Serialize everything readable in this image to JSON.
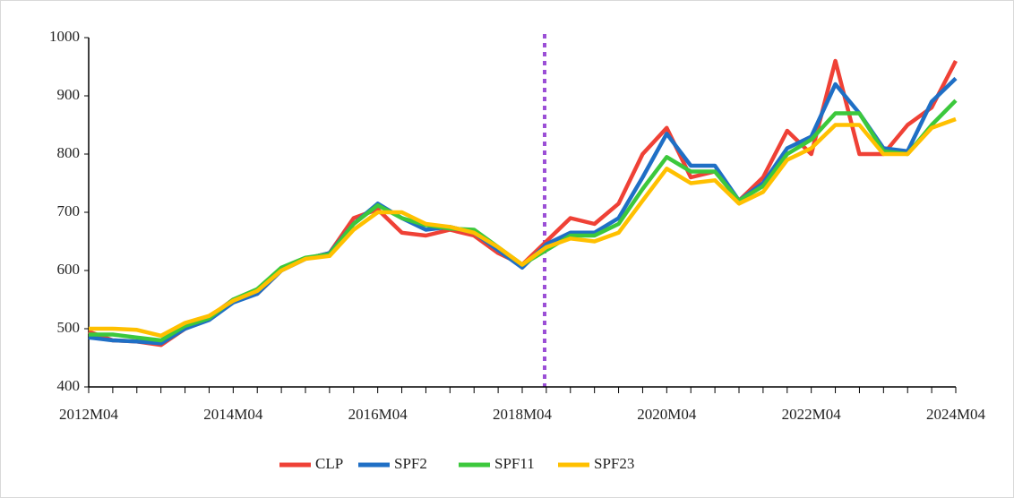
{
  "chart_data": {
    "type": "line",
    "categories": [
      "2012M04",
      null,
      null,
      null,
      null,
      null,
      "2014M04",
      null,
      null,
      null,
      null,
      null,
      "2016M04",
      null,
      null,
      null,
      null,
      null,
      "2018M04",
      null,
      null,
      null,
      null,
      null,
      "2020M04",
      null,
      null,
      null,
      null,
      null,
      "2022M04",
      null,
      null,
      null,
      null,
      null,
      "2024M04"
    ],
    "ylim": [
      400,
      1000
    ],
    "yticks": [
      400,
      500,
      600,
      700,
      800,
      900,
      1000
    ],
    "grid": false,
    "legend": "bottom",
    "series": [
      {
        "name": "CLP",
        "color": "#ef4136",
        "values": [
          495,
          480,
          478,
          472,
          500,
          520,
          550,
          560,
          600,
          620,
          630,
          690,
          705,
          665,
          660,
          670,
          660,
          630,
          610,
          650,
          690,
          680,
          715,
          800,
          845,
          760,
          770,
          720,
          760,
          840,
          800,
          960,
          800,
          800,
          850,
          880,
          960
        ]
      },
      {
        "name": "SPF2",
        "color": "#1f6fc5",
        "values": [
          485,
          480,
          478,
          475,
          500,
          515,
          545,
          560,
          600,
          620,
          630,
          680,
          715,
          690,
          670,
          675,
          665,
          635,
          605,
          645,
          665,
          665,
          690,
          760,
          835,
          780,
          780,
          720,
          750,
          810,
          830,
          920,
          870,
          810,
          805,
          890,
          930
        ]
      },
      {
        "name": "SPF11",
        "color": "#3cc83c",
        "values": [
          490,
          490,
          485,
          480,
          505,
          518,
          550,
          568,
          605,
          622,
          628,
          680,
          712,
          690,
          678,
          672,
          670,
          640,
          610,
          635,
          660,
          660,
          680,
          740,
          795,
          770,
          770,
          720,
          745,
          800,
          825,
          870,
          870,
          805,
          800,
          850,
          892
        ]
      },
      {
        "name": "SPF23",
        "color": "#ffc000",
        "values": [
          500,
          500,
          498,
          488,
          510,
          522,
          548,
          565,
          600,
          620,
          625,
          670,
          700,
          700,
          680,
          675,
          665,
          640,
          610,
          640,
          655,
          650,
          665,
          720,
          775,
          750,
          755,
          715,
          735,
          790,
          810,
          850,
          850,
          800,
          800,
          845,
          860
        ]
      }
    ]
  }
}
